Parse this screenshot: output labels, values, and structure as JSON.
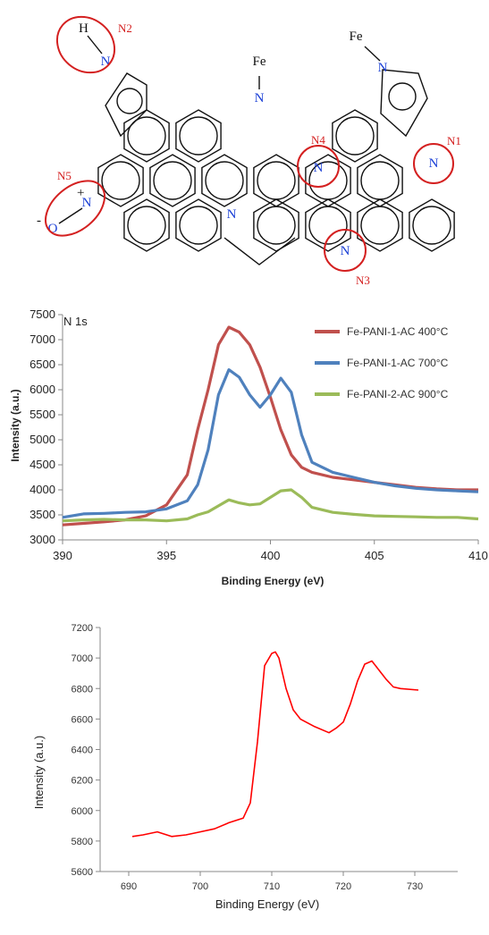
{
  "structure": {
    "atoms": {
      "h": "H",
      "n": "N",
      "fe": "Fe",
      "o": "O",
      "plus": "+",
      "minus": "-"
    },
    "tags": [
      "N1",
      "N2",
      "N3",
      "N4",
      "N5"
    ]
  },
  "chart_data": [
    {
      "type": "line",
      "annotation": "N 1s",
      "xlabel": "Binding Energy (eV)",
      "ylabel": "Intensity (a.u.)",
      "xlim": [
        390,
        410
      ],
      "ylim": [
        3000,
        7500
      ],
      "xticks": [
        390,
        395,
        400,
        405,
        410
      ],
      "yticks": [
        3000,
        3500,
        4000,
        4500,
        5000,
        5500,
        6000,
        6500,
        7000,
        7500
      ],
      "legend_position": "top-right",
      "series": [
        {
          "name": "Fe-PANI-1-AC 400°C",
          "color": "#c0504d",
          "x": [
            390,
            391,
            392,
            393,
            394,
            395,
            396,
            396.5,
            397,
            397.5,
            398,
            398.5,
            399,
            399.5,
            400,
            400.5,
            401,
            401.5,
            402,
            403,
            404,
            405,
            406,
            407,
            408,
            409,
            410
          ],
          "y": [
            3300,
            3330,
            3360,
            3400,
            3480,
            3700,
            4300,
            5200,
            6000,
            6900,
            7250,
            7150,
            6900,
            6450,
            5850,
            5200,
            4700,
            4450,
            4350,
            4250,
            4200,
            4150,
            4100,
            4050,
            4020,
            4000,
            4000
          ]
        },
        {
          "name": "Fe-PANI-1-AC 700°C",
          "color": "#4f81bd",
          "x": [
            390,
            391,
            392,
            393,
            394,
            395,
            396,
            396.5,
            397,
            397.5,
            398,
            398.5,
            399,
            399.5,
            400,
            400.5,
            401,
            401.5,
            402,
            403,
            404,
            405,
            406,
            407,
            408,
            409,
            410
          ],
          "y": [
            3450,
            3520,
            3530,
            3550,
            3560,
            3620,
            3780,
            4100,
            4800,
            5900,
            6400,
            6250,
            5900,
            5650,
            5900,
            6230,
            5950,
            5100,
            4550,
            4350,
            4250,
            4150,
            4080,
            4030,
            4000,
            3980,
            3960
          ]
        },
        {
          "name": "Fe-PANI-2-AC 900°C",
          "color": "#9bbb59",
          "x": [
            390,
            391,
            392,
            393,
            394,
            395,
            396,
            396.5,
            397,
            397.5,
            398,
            398.5,
            399,
            399.5,
            400,
            400.5,
            401,
            401.5,
            402,
            403,
            404,
            405,
            406,
            407,
            408,
            409,
            410
          ],
          "y": [
            3380,
            3400,
            3410,
            3400,
            3400,
            3380,
            3420,
            3500,
            3560,
            3680,
            3800,
            3740,
            3700,
            3720,
            3850,
            3980,
            4000,
            3850,
            3650,
            3550,
            3510,
            3480,
            3470,
            3460,
            3450,
            3450,
            3420
          ]
        }
      ]
    },
    {
      "type": "line",
      "xlabel": "Binding Energy (eV)",
      "ylabel": "Intensity (a.u.)",
      "xlim": [
        686,
        736
      ],
      "ylim": [
        5600,
        7200
      ],
      "xticks": [
        690,
        700,
        710,
        720,
        730
      ],
      "yticks": [
        5600,
        5800,
        6000,
        6200,
        6400,
        6600,
        6800,
        7000,
        7200
      ],
      "series": [
        {
          "color": "#ff0000",
          "x": [
            690.5,
            692,
            694,
            696,
            698,
            700,
            702,
            704,
            706,
            707,
            708,
            709,
            710,
            710.5,
            711,
            712,
            713,
            714,
            716,
            718,
            719,
            720,
            721,
            722,
            723,
            724,
            725,
            726,
            727,
            728,
            730.5
          ],
          "y": [
            5830,
            5840,
            5860,
            5830,
            5840,
            5860,
            5880,
            5920,
            5950,
            6050,
            6450,
            6950,
            7030,
            7040,
            7000,
            6800,
            6660,
            6600,
            6550,
            6510,
            6540,
            6580,
            6700,
            6850,
            6960,
            6980,
            6920,
            6860,
            6810,
            6800,
            6790
          ]
        }
      ]
    }
  ]
}
